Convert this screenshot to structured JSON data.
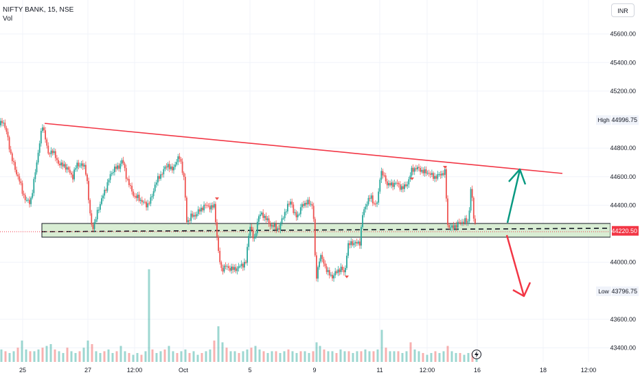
{
  "header": {
    "symbol_line": "NIFTY BANK, 15, NSE",
    "volume_label": "Vol"
  },
  "currency_button": "INR",
  "colors": {
    "up": "#26a69a",
    "down": "#ef5350",
    "trendline": "#f23645",
    "support_fill": "#d8edd3",
    "up_arrow": "#089981",
    "down_arrow": "#f23645",
    "last_price": "#f23645"
  },
  "chart_data": {
    "type": "candlestick",
    "y_axis_ticks": [
      "45600.00",
      "45400.00",
      "45200.00",
      "44800.00",
      "44600.00",
      "44400.00",
      "44000.00",
      "43600.00",
      "43400.00"
    ],
    "x_axis_ticks": [
      "25",
      "27",
      "12:00",
      "Oct",
      "5",
      "9",
      "11",
      "12:00",
      "16",
      "18",
      "12:00"
    ],
    "price_labels": {
      "high_label": "High",
      "high_value": "44996.75",
      "low_label": "Low",
      "low_value": "43796.75",
      "last_value": "44220.50"
    },
    "ylim": [
      43340,
      45680
    ],
    "price_path": [
      [
        0,
        44960
      ],
      [
        4,
        45000
      ],
      [
        10,
        44900
      ],
      [
        16,
        44750
      ],
      [
        22,
        44650
      ],
      [
        28,
        44580
      ],
      [
        32,
        44500
      ],
      [
        38,
        44430
      ],
      [
        44,
        44420
      ],
      [
        48,
        44520
      ],
      [
        54,
        44720
      ],
      [
        58,
        44850
      ],
      [
        62,
        44960
      ],
      [
        66,
        44880
      ],
      [
        70,
        44750
      ],
      [
        76,
        44790
      ],
      [
        82,
        44720
      ],
      [
        88,
        44680
      ],
      [
        94,
        44680
      ],
      [
        100,
        44640
      ],
      [
        106,
        44600
      ],
      [
        112,
        44690
      ],
      [
        118,
        44680
      ],
      [
        124,
        44670
      ],
      [
        127,
        44560
      ],
      [
        130,
        44380
      ],
      [
        134,
        44240
      ],
      [
        138,
        44270
      ],
      [
        142,
        44360
      ],
      [
        148,
        44440
      ],
      [
        154,
        44520
      ],
      [
        160,
        44600
      ],
      [
        166,
        44660
      ],
      [
        172,
        44660
      ],
      [
        178,
        44720
      ],
      [
        184,
        44600
      ],
      [
        190,
        44520
      ],
      [
        196,
        44460
      ],
      [
        202,
        44450
      ],
      [
        208,
        44420
      ],
      [
        214,
        44400
      ],
      [
        220,
        44440
      ],
      [
        226,
        44550
      ],
      [
        232,
        44600
      ],
      [
        238,
        44640
      ],
      [
        244,
        44690
      ],
      [
        250,
        44640
      ],
      [
        256,
        44700
      ],
      [
        262,
        44740
      ],
      [
        268,
        44580
      ],
      [
        272,
        44280
      ],
      [
        278,
        44320
      ],
      [
        284,
        44330
      ],
      [
        290,
        44360
      ],
      [
        296,
        44390
      ],
      [
        302,
        44400
      ],
      [
        308,
        44380
      ],
      [
        312,
        44400
      ],
      [
        318,
        44070
      ],
      [
        322,
        43950
      ],
      [
        328,
        43970
      ],
      [
        334,
        43960
      ],
      [
        340,
        43950
      ],
      [
        346,
        43960
      ],
      [
        352,
        43980
      ],
      [
        358,
        44000
      ],
      [
        364,
        44270
      ],
      [
        370,
        44140
      ],
      [
        376,
        44320
      ],
      [
        382,
        44340
      ],
      [
        388,
        44300
      ],
      [
        394,
        44260
      ],
      [
        400,
        44250
      ],
      [
        406,
        44230
      ],
      [
        412,
        44320
      ],
      [
        418,
        44380
      ],
      [
        424,
        44440
      ],
      [
        428,
        44330
      ],
      [
        434,
        44330
      ],
      [
        440,
        44400
      ],
      [
        446,
        44420
      ],
      [
        452,
        44410
      ],
      [
        456,
        44400
      ],
      [
        460,
        43870
      ],
      [
        466,
        44050
      ],
      [
        472,
        43990
      ],
      [
        478,
        43920
      ],
      [
        484,
        43900
      ],
      [
        490,
        43930
      ],
      [
        496,
        43960
      ],
      [
        502,
        43920
      ],
      [
        506,
        44110
      ],
      [
        512,
        44140
      ],
      [
        518,
        44130
      ],
      [
        524,
        44140
      ],
      [
        528,
        44330
      ],
      [
        534,
        44420
      ],
      [
        540,
        44460
      ],
      [
        546,
        44400
      ],
      [
        550,
        44420
      ],
      [
        554,
        44640
      ],
      [
        558,
        44610
      ],
      [
        564,
        44550
      ],
      [
        570,
        44540
      ],
      [
        576,
        44560
      ],
      [
        582,
        44530
      ],
      [
        588,
        44520
      ],
      [
        594,
        44560
      ],
      [
        600,
        44650
      ],
      [
        606,
        44660
      ],
      [
        612,
        44650
      ],
      [
        618,
        44630
      ],
      [
        624,
        44630
      ],
      [
        630,
        44600
      ],
      [
        636,
        44600
      ],
      [
        642,
        44620
      ],
      [
        648,
        44630
      ],
      [
        652,
        44260
      ],
      [
        658,
        44240
      ],
      [
        664,
        44260
      ],
      [
        670,
        44280
      ],
      [
        676,
        44290
      ],
      [
        682,
        44280
      ],
      [
        686,
        44540
      ],
      [
        690,
        44300
      ],
      [
        694,
        44230
      ]
    ],
    "volume": [
      [
        2,
        0.35
      ],
      [
        8,
        0.3
      ],
      [
        14,
        0.25
      ],
      [
        20,
        0.3
      ],
      [
        26,
        0.4
      ],
      [
        32,
        0.6
      ],
      [
        38,
        0.35
      ],
      [
        44,
        0.3
      ],
      [
        50,
        0.3
      ],
      [
        56,
        0.35
      ],
      [
        62,
        0.4
      ],
      [
        68,
        0.45
      ],
      [
        74,
        0.5
      ],
      [
        80,
        0.35
      ],
      [
        86,
        0.3
      ],
      [
        92,
        0.25
      ],
      [
        98,
        0.4
      ],
      [
        104,
        0.3
      ],
      [
        110,
        0.25
      ],
      [
        116,
        0.3
      ],
      [
        122,
        0.4
      ],
      [
        128,
        0.6
      ],
      [
        134,
        0.5
      ],
      [
        140,
        0.3
      ],
      [
        146,
        0.25
      ],
      [
        152,
        0.3
      ],
      [
        158,
        0.35
      ],
      [
        164,
        0.25
      ],
      [
        170,
        0.3
      ],
      [
        176,
        0.45
      ],
      [
        182,
        0.3
      ],
      [
        188,
        0.25
      ],
      [
        194,
        0.2
      ],
      [
        200,
        0.25
      ],
      [
        206,
        0.2
      ],
      [
        212,
        0.3
      ],
      [
        217,
        2.6
      ],
      [
        222,
        0.35
      ],
      [
        228,
        0.25
      ],
      [
        234,
        0.3
      ],
      [
        240,
        0.35
      ],
      [
        246,
        0.45
      ],
      [
        252,
        0.3
      ],
      [
        258,
        0.25
      ],
      [
        264,
        0.3
      ],
      [
        270,
        0.35
      ],
      [
        276,
        0.25
      ],
      [
        282,
        0.3
      ],
      [
        288,
        0.2
      ],
      [
        294,
        0.25
      ],
      [
        300,
        0.3
      ],
      [
        306,
        0.35
      ],
      [
        312,
        0.6
      ],
      [
        318,
        1.0
      ],
      [
        324,
        0.55
      ],
      [
        330,
        0.4
      ],
      [
        336,
        0.3
      ],
      [
        342,
        0.3
      ],
      [
        348,
        0.25
      ],
      [
        354,
        0.3
      ],
      [
        360,
        0.35
      ],
      [
        366,
        0.4
      ],
      [
        372,
        0.45
      ],
      [
        378,
        0.35
      ],
      [
        384,
        0.3
      ],
      [
        390,
        0.25
      ],
      [
        396,
        0.3
      ],
      [
        402,
        0.3
      ],
      [
        408,
        0.25
      ],
      [
        414,
        0.3
      ],
      [
        420,
        0.35
      ],
      [
        426,
        0.3
      ],
      [
        432,
        0.25
      ],
      [
        438,
        0.3
      ],
      [
        444,
        0.3
      ],
      [
        450,
        0.25
      ],
      [
        456,
        0.3
      ],
      [
        461,
        0.55
      ],
      [
        466,
        0.45
      ],
      [
        472,
        0.35
      ],
      [
        478,
        0.3
      ],
      [
        484,
        0.3
      ],
      [
        490,
        0.25
      ],
      [
        496,
        0.35
      ],
      [
        502,
        0.3
      ],
      [
        508,
        0.3
      ],
      [
        514,
        0.25
      ],
      [
        520,
        0.3
      ],
      [
        526,
        0.3
      ],
      [
        532,
        0.35
      ],
      [
        538,
        0.3
      ],
      [
        544,
        0.3
      ],
      [
        550,
        0.35
      ],
      [
        556,
        0.9
      ],
      [
        562,
        0.4
      ],
      [
        568,
        0.3
      ],
      [
        574,
        0.3
      ],
      [
        580,
        0.3
      ],
      [
        586,
        0.25
      ],
      [
        592,
        0.3
      ],
      [
        598,
        0.55
      ],
      [
        604,
        0.35
      ],
      [
        610,
        0.3
      ],
      [
        616,
        0.25
      ],
      [
        622,
        0.2
      ],
      [
        628,
        0.25
      ],
      [
        634,
        0.3
      ],
      [
        640,
        0.25
      ],
      [
        646,
        0.3
      ],
      [
        652,
        0.45
      ],
      [
        658,
        0.3
      ],
      [
        664,
        0.25
      ],
      [
        670,
        0.25
      ],
      [
        676,
        0.2
      ],
      [
        682,
        0.25
      ],
      [
        688,
        0.25
      ],
      [
        694,
        0.3
      ]
    ]
  }
}
